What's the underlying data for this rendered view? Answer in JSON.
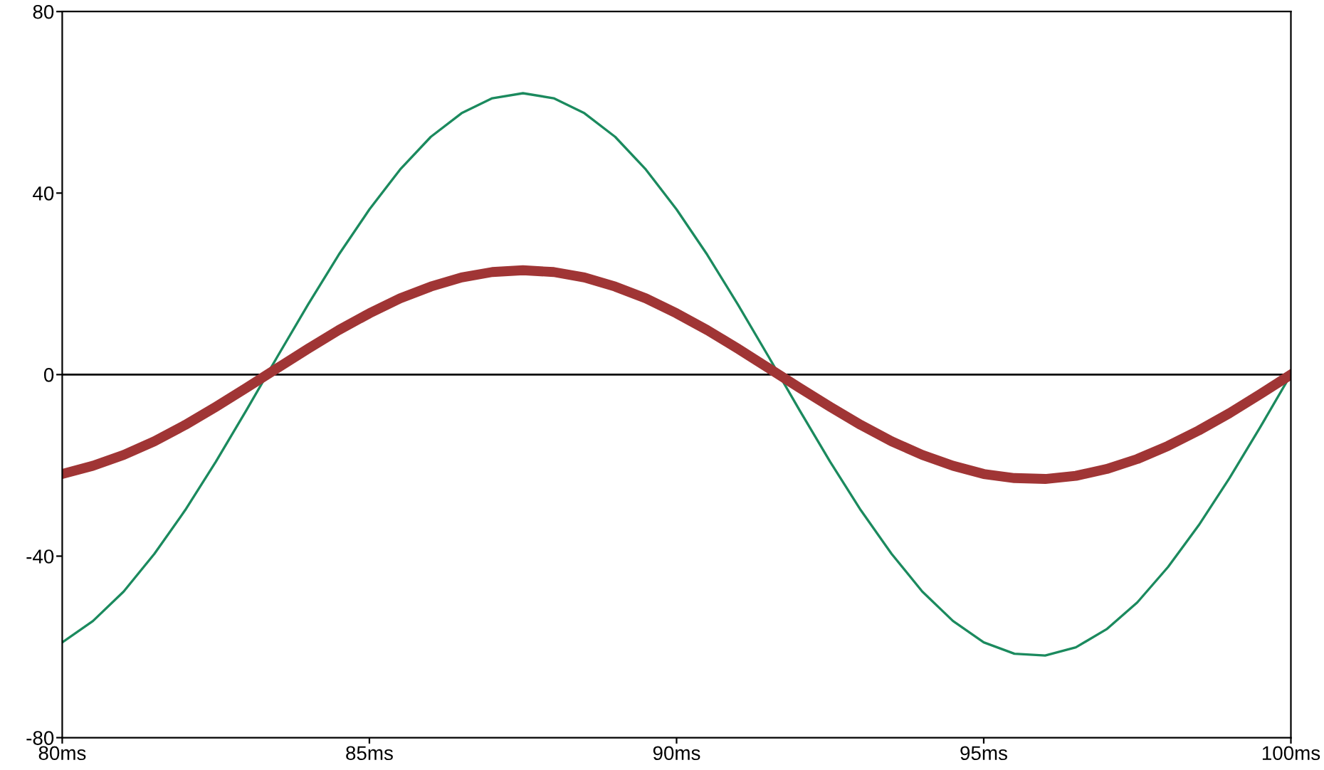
{
  "chart_data": {
    "type": "line",
    "x": [
      80,
      80.5,
      81,
      81.5,
      82,
      82.5,
      83,
      83.5,
      84,
      84.5,
      85,
      85.5,
      86,
      86.5,
      87,
      87.5,
      88,
      88.5,
      89,
      89.5,
      90,
      90.5,
      91,
      91.5,
      92,
      92.5,
      93,
      93.5,
      94,
      94.5,
      95,
      95.5,
      96,
      96.5,
      97,
      97.5,
      98,
      98.5,
      99,
      99.5,
      100
    ],
    "series": [
      {
        "color": "#1b8a5e",
        "values": [
          -59,
          -54.3,
          -47.8,
          -39.5,
          -29.9,
          -19.2,
          -7.8,
          3.9,
          15.4,
          26.4,
          36.4,
          45.2,
          52.4,
          57.6,
          60.9,
          62,
          60.9,
          57.6,
          52.4,
          45.2,
          36.4,
          26.4,
          15.4,
          3.9,
          -7.8,
          -19.2,
          -29.9,
          -39.5,
          -47.8,
          -54.3,
          -59,
          -61.5,
          -61.9,
          -60.1,
          -56.1,
          -50.2,
          -42.4,
          -33.2,
          -22.8,
          -11.6,
          0
        ]
      },
      {
        "color": "#a03535",
        "values": [
          -21.9,
          -20.1,
          -17.7,
          -14.7,
          -11.1,
          -7.1,
          -2.9,
          1.4,
          5.7,
          9.8,
          13.5,
          16.8,
          19.4,
          21.4,
          22.6,
          23,
          22.6,
          21.4,
          19.4,
          16.8,
          13.5,
          9.8,
          5.7,
          1.4,
          -2.9,
          -7.1,
          -11.1,
          -14.7,
          -17.7,
          -20.1,
          -21.9,
          -22.8,
          -23,
          -22.3,
          -20.8,
          -18.6,
          -15.7,
          -12.3,
          -8.5,
          -4.3,
          0
        ]
      }
    ],
    "xlim": [
      80,
      100
    ],
    "xticks": [
      {
        "value": 80,
        "label": "80ms"
      },
      {
        "value": 85,
        "label": "85ms"
      },
      {
        "value": 90,
        "label": "90ms"
      },
      {
        "value": 95,
        "label": "95ms"
      },
      {
        "value": 100,
        "label": "100ms"
      }
    ],
    "ylim": [
      -80,
      80
    ],
    "yticks": [
      -80,
      -40,
      0,
      40,
      80
    ],
    "ref_lines": [
      {
        "axis": "y",
        "value": 0,
        "color": "#000000"
      }
    ],
    "grid": false,
    "legend": false,
    "marker": "none",
    "line_style": "solid"
  }
}
